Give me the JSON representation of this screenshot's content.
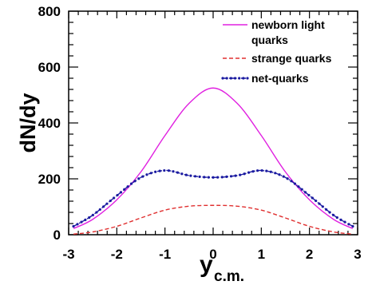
{
  "chart_data": {
    "type": "line",
    "title": "",
    "xlabel_main": "y",
    "xlabel_sub": "c.m.",
    "ylabel": "dN/dy",
    "xlim": [
      -3,
      3
    ],
    "ylim": [
      0,
      800
    ],
    "x_ticks": [
      "-3",
      "-2",
      "-1",
      "0",
      "1",
      "2",
      "3"
    ],
    "y_ticks": [
      "0",
      "200",
      "400",
      "600",
      "800"
    ],
    "legend_position": "top-right",
    "grid": false,
    "x": [
      -2.9,
      -2.5,
      -2.0,
      -1.5,
      -1.0,
      -0.5,
      0.0,
      0.5,
      1.0,
      1.5,
      2.0,
      2.5,
      2.9
    ],
    "series": [
      {
        "name_lines": [
          "newborn light",
          "quarks"
        ],
        "color": "#e020e0",
        "style": "solid",
        "values": [
          22,
          55,
          125,
          225,
          355,
          470,
          525,
          470,
          355,
          225,
          125,
          55,
          22
        ]
      },
      {
        "name_lines": [
          "strange quarks"
        ],
        "color": "#e03030",
        "style": "dashed",
        "values": [
          2,
          10,
          30,
          60,
          88,
          102,
          105,
          102,
          88,
          60,
          30,
          10,
          2
        ]
      },
      {
        "name_lines": [
          "net-quarks"
        ],
        "color": "#1a1aa0",
        "style": "dash-dot-markers",
        "values": [
          30,
          70,
          140,
          205,
          230,
          212,
          205,
          212,
          230,
          205,
          140,
          70,
          30
        ]
      }
    ]
  }
}
